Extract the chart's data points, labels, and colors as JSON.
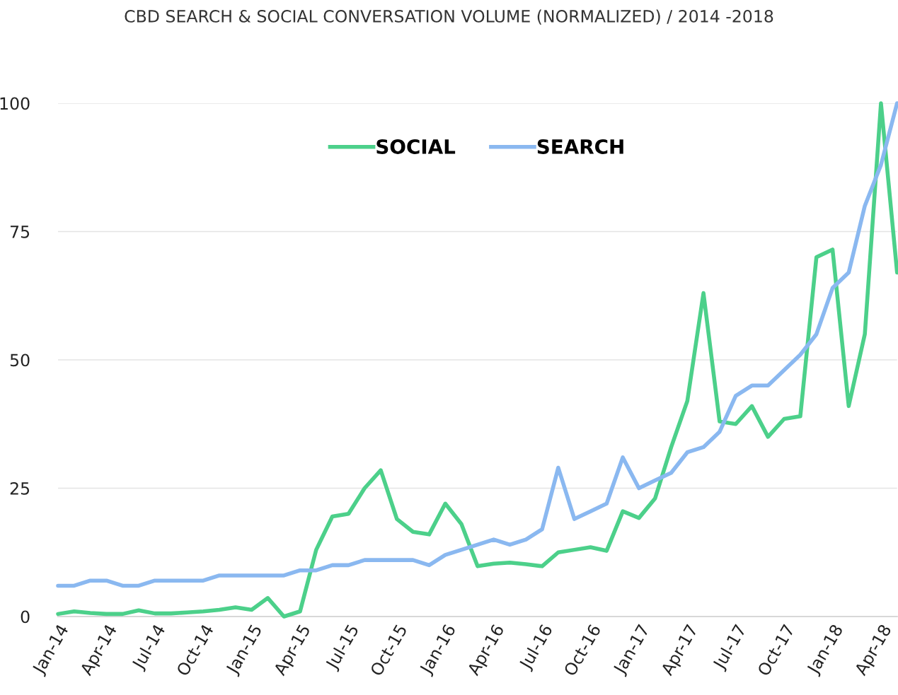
{
  "chart_data": {
    "type": "line",
    "title": "CBD SEARCH & SOCIAL CONVERSATION VOLUME (NORMALIZED) / 2014 -2018",
    "categories": [
      "Jan-14",
      null,
      null,
      "Apr-14",
      null,
      null,
      "Jul-14",
      null,
      null,
      "Oct-14",
      null,
      null,
      "Jan-15",
      null,
      null,
      "Apr-15",
      null,
      null,
      "Jul-15",
      null,
      null,
      "Oct-15",
      null,
      null,
      "Jan-16",
      null,
      null,
      "Apr-16",
      null,
      null,
      "Jul-16",
      null,
      null,
      "Oct-16",
      null,
      null,
      "Jan-17",
      null,
      null,
      "Apr-17",
      null,
      null,
      "Jul-17",
      null,
      null,
      "Oct-17",
      null,
      null,
      "Jan-18",
      null,
      null,
      "Apr-18",
      null
    ],
    "series": [
      {
        "name": "SOCIAL",
        "color": "#4cd08a",
        "values": [
          0.5,
          1,
          0.7,
          0.5,
          0.5,
          1.2,
          0.6,
          0.6,
          0.8,
          1,
          1.3,
          1.8,
          1.3,
          3.6,
          0,
          1,
          13,
          19.5,
          20,
          25,
          28.5,
          19,
          16.5,
          16,
          22,
          18,
          9.8,
          10.3,
          10.5,
          10.2,
          9.8,
          12.5,
          13,
          13.5,
          12.8,
          20.5,
          19.2,
          23,
          33,
          42,
          63,
          38,
          37.5,
          41,
          35,
          38.5,
          39,
          70,
          71.5,
          41,
          55,
          100,
          67
        ]
      },
      {
        "name": "SEARCH",
        "color": "#8ab8f0",
        "values": [
          6,
          6,
          7,
          7,
          6,
          6,
          7,
          7,
          7,
          7,
          8,
          8,
          8,
          8,
          8,
          9,
          9,
          10,
          10,
          11,
          11,
          11,
          11,
          10,
          12,
          13,
          14,
          15,
          14,
          15,
          17,
          29,
          19,
          20.5,
          22,
          31,
          25,
          26.5,
          28,
          32,
          33,
          36,
          43,
          45,
          45,
          48,
          51,
          55,
          64,
          67,
          80,
          88,
          100
        ]
      }
    ],
    "ylim": [
      0,
      100
    ],
    "yticks": [
      0,
      25,
      50,
      75,
      100
    ],
    "grid": "y",
    "legend": "top",
    "marker": "none",
    "line_style": "solid"
  }
}
